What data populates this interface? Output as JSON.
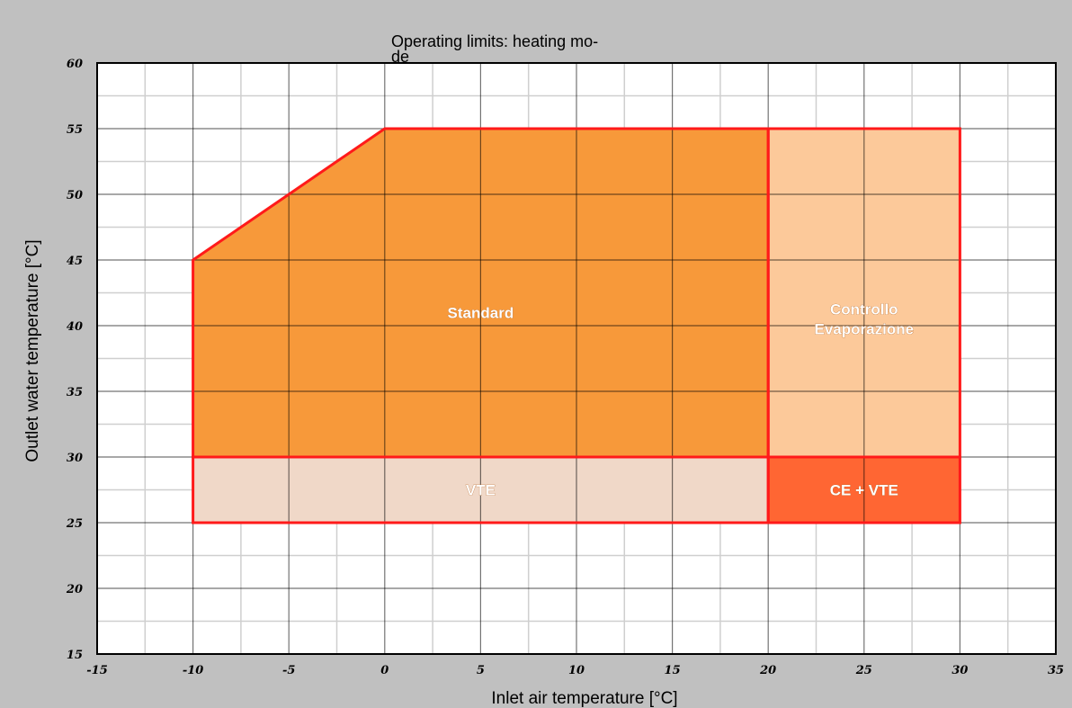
{
  "chart_data": {
    "type": "area",
    "title_lines": [
      "Operating limits: heating mo-",
      "de"
    ],
    "xlabel": "Inlet air temperature [°C]",
    "ylabel": "Outlet water temperature [°C]",
    "xlim": [
      -15,
      35
    ],
    "ylim": [
      15,
      60
    ],
    "x_ticks": [
      -15,
      -10,
      -5,
      0,
      5,
      10,
      15,
      20,
      25,
      30,
      35
    ],
    "y_ticks": [
      15,
      20,
      25,
      30,
      35,
      40,
      45,
      50,
      55,
      60
    ],
    "grid": true,
    "regions": [
      {
        "name": "Standard",
        "label_lines": [
          "Standard"
        ],
        "color": "#f7993a",
        "label_at": [
          5,
          41
        ],
        "points": [
          [
            -10,
            45
          ],
          [
            -5,
            50
          ],
          [
            0,
            55
          ],
          [
            20,
            55
          ],
          [
            20,
            30
          ],
          [
            -10,
            30
          ]
        ]
      },
      {
        "name": "Controllo Evaporazione",
        "label_lines": [
          "Controllo",
          "Evaporazione"
        ],
        "color": "#fcc99a",
        "label_at": [
          25,
          40.5
        ],
        "points": [
          [
            20,
            55
          ],
          [
            30,
            55
          ],
          [
            30,
            30
          ],
          [
            20,
            30
          ]
        ]
      },
      {
        "name": "VTE",
        "label_lines": [
          "VTE"
        ],
        "color": "#f0d8c8",
        "label_at": [
          5,
          27.5
        ],
        "points": [
          [
            -10,
            30
          ],
          [
            20,
            30
          ],
          [
            20,
            25
          ],
          [
            -10,
            25
          ]
        ]
      },
      {
        "name": "CE + VTE",
        "label_lines": [
          "CE + VTE"
        ],
        "color": "#ff6633",
        "label_at": [
          25,
          27.5
        ],
        "points": [
          [
            20,
            30
          ],
          [
            30,
            30
          ],
          [
            30,
            25
          ],
          [
            20,
            25
          ]
        ]
      }
    ],
    "border_color": "#ff1a1a"
  }
}
